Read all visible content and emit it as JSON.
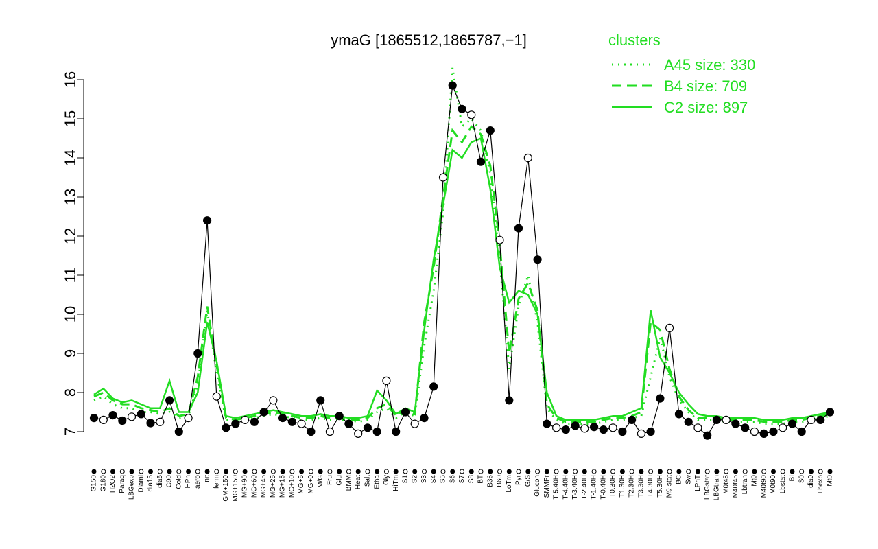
{
  "chart_data": {
    "type": "line",
    "title": "ymaG [1865512,1865787,−1]",
    "xlabel": "",
    "ylabel": "",
    "ylim": [
      7,
      16
    ],
    "yticks": [
      7,
      8,
      9,
      10,
      11,
      12,
      13,
      14,
      15,
      16
    ],
    "legend": {
      "title": "clusters",
      "placement": "top-right",
      "color": "#22dd22",
      "entries": [
        {
          "label": "A45 size: 330",
          "style": "dotted"
        },
        {
          "label": "B4 size: 709",
          "style": "dashed"
        },
        {
          "label": "C2 size: 897",
          "style": "solid"
        }
      ]
    },
    "x_labels": [
      "G150",
      "G180",
      "H2O2",
      "Paraq",
      "LBGexp",
      "Diami",
      "dia15",
      "dia5",
      "C90",
      "Cold",
      "HPh",
      "aero",
      "nit",
      "ferm",
      "GM+150",
      "MG+150",
      "MG+90",
      "MG+60",
      "MG+45",
      "MG+25",
      "MG+15",
      "MG+10",
      "MG+5",
      "MG+0",
      "M/G",
      "Fru",
      "Glu",
      "BMM",
      "Heat",
      "Salt",
      "Etha",
      "Gly",
      "HiTm",
      "S1",
      "S2",
      "S3",
      "S4",
      "S5",
      "S6",
      "S7",
      "S8",
      "BT",
      "B36",
      "B60",
      "LoTm",
      "Pyr",
      "G/S",
      "Glucon",
      "SMMPr",
      "T-5.40H",
      "T-4.40H",
      "T-3.40H",
      "T-2.40H",
      "T-1.40H",
      "T-0.40H",
      "T0.30H",
      "T1.30H",
      "T2.30H",
      "T3.30H",
      "T4.30H",
      "T5.30H",
      "M9-stat",
      "BC",
      "Sw",
      "LPhT",
      "LBGstat",
      "LBGtran",
      "M0t45",
      "M40t45",
      "Lbtran",
      "Mt0",
      "M40t90",
      "M0t90",
      "Lbstat",
      "BI",
      "S0",
      "dia0",
      "Lbexp",
      "Mt0"
    ],
    "points_filled": [
      7.35,
      7.3,
      7.42,
      7.28,
      7.38,
      7.45,
      7.22,
      7.25,
      7.8,
      7.0,
      7.35,
      9.0,
      12.4,
      7.9,
      7.1,
      7.2,
      7.3,
      7.25,
      7.5,
      7.8,
      7.35,
      7.25,
      7.2,
      7.0,
      7.8,
      7.0,
      7.4,
      7.2,
      6.95,
      7.1,
      7.0,
      8.3,
      7.0,
      7.5,
      7.2,
      7.35,
      8.15,
      13.5,
      15.85,
      15.25,
      15.1,
      13.9,
      14.7,
      11.9,
      7.8,
      12.2,
      14.0,
      11.4,
      7.2,
      7.1,
      7.05,
      7.15,
      7.08,
      7.12,
      7.05,
      7.1,
      7.0,
      7.3,
      6.95,
      7.0,
      7.85,
      9.65,
      7.45,
      7.25,
      7.1,
      6.9,
      7.3,
      7.3,
      7.2,
      7.1,
      7.0,
      6.95,
      7.0,
      7.1,
      7.2,
      7.0,
      7.3,
      7.3,
      7.5
    ],
    "series": [
      {
        "name": "A45 size: 330",
        "style": "dotted",
        "values": [
          7.8,
          7.9,
          7.7,
          7.6,
          7.6,
          7.5,
          7.5,
          7.45,
          7.5,
          7.35,
          7.4,
          8.2,
          10.1,
          8.5,
          7.3,
          7.3,
          7.35,
          7.35,
          7.4,
          7.45,
          7.4,
          7.35,
          7.3,
          7.3,
          7.35,
          7.3,
          7.3,
          7.3,
          7.25,
          7.3,
          7.5,
          7.6,
          7.35,
          7.5,
          7.4,
          9.2,
          10.6,
          12.6,
          16.3,
          14.8,
          15.0,
          14.7,
          13.6,
          11.4,
          8.6,
          10.2,
          11.0,
          9.8,
          7.6,
          7.3,
          7.2,
          7.2,
          7.2,
          7.2,
          7.25,
          7.3,
          7.3,
          7.35,
          7.4,
          8.4,
          9.4,
          8.4,
          7.8,
          7.5,
          7.3,
          7.3,
          7.3,
          7.25,
          7.25,
          7.25,
          7.25,
          7.2,
          7.2,
          7.2,
          7.25,
          7.25,
          7.3,
          7.35,
          7.4
        ]
      },
      {
        "name": "B4 size: 709",
        "style": "dashed",
        "values": [
          7.9,
          8.0,
          7.8,
          7.7,
          7.7,
          7.6,
          7.55,
          7.5,
          7.6,
          7.4,
          7.45,
          8.4,
          10.2,
          8.7,
          7.35,
          7.3,
          7.35,
          7.4,
          7.45,
          7.5,
          7.45,
          7.4,
          7.35,
          7.35,
          7.4,
          7.35,
          7.35,
          7.3,
          7.3,
          7.35,
          7.6,
          7.7,
          7.4,
          7.55,
          7.45,
          9.8,
          11.2,
          13.0,
          14.7,
          14.4,
          14.8,
          14.6,
          13.8,
          11.8,
          9.0,
          10.4,
          10.8,
          10.1,
          7.7,
          7.35,
          7.25,
          7.25,
          7.25,
          7.25,
          7.3,
          7.35,
          7.35,
          7.4,
          7.5,
          9.8,
          9.6,
          8.6,
          7.9,
          7.55,
          7.35,
          7.35,
          7.35,
          7.3,
          7.3,
          7.3,
          7.3,
          7.25,
          7.25,
          7.25,
          7.3,
          7.3,
          7.35,
          7.4,
          7.45
        ]
      },
      {
        "name": "C2 size: 897",
        "style": "solid",
        "values": [
          7.95,
          8.1,
          7.85,
          7.75,
          7.8,
          7.7,
          7.6,
          7.6,
          8.3,
          7.5,
          7.5,
          8.0,
          9.8,
          8.8,
          7.4,
          7.35,
          7.4,
          7.45,
          7.5,
          7.55,
          7.5,
          7.45,
          7.4,
          7.4,
          7.45,
          7.4,
          7.4,
          7.35,
          7.35,
          7.4,
          8.05,
          7.8,
          7.45,
          7.6,
          7.5,
          9.6,
          11.4,
          12.8,
          14.2,
          14.0,
          14.4,
          14.5,
          13.2,
          11.2,
          10.3,
          10.6,
          10.5,
          10.0,
          8.0,
          7.4,
          7.3,
          7.3,
          7.3,
          7.3,
          7.35,
          7.4,
          7.4,
          7.5,
          7.6,
          10.1,
          8.9,
          8.5,
          8.0,
          7.7,
          7.45,
          7.4,
          7.4,
          7.35,
          7.35,
          7.35,
          7.35,
          7.3,
          7.3,
          7.3,
          7.35,
          7.35,
          7.4,
          7.45,
          7.5
        ]
      }
    ]
  }
}
